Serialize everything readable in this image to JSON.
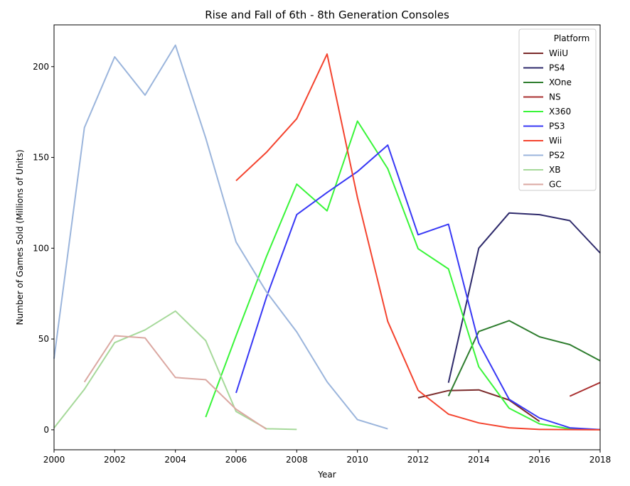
{
  "chart_data": {
    "type": "line",
    "title": "Rise and Fall of 6th - 8th Generation Consoles",
    "xlabel": "Year",
    "ylabel": "Number of Games Sold (Millions of Units)",
    "xlim": [
      2000,
      2018
    ],
    "ylim": [
      -11,
      223
    ],
    "xticks": [
      2000,
      2002,
      2004,
      2006,
      2008,
      2010,
      2012,
      2014,
      2016,
      2018
    ],
    "yticks": [
      0,
      50,
      100,
      150,
      200
    ],
    "grid": false,
    "legend": {
      "title": "Platform",
      "placement": "top-right"
    },
    "series": [
      {
        "name": "WiiU",
        "color": "#7b2b2b",
        "x": [
          2012,
          2013,
          2014,
          2015,
          2016
        ],
        "y": [
          17.6,
          21.6,
          22.0,
          16.4,
          4.6
        ]
      },
      {
        "name": "PS4",
        "color": "#2e2a6b",
        "x": [
          2013,
          2014,
          2015,
          2016,
          2017,
          2018
        ],
        "y": [
          25.9,
          100.0,
          119.4,
          118.5,
          115.2,
          97.4
        ]
      },
      {
        "name": "XOne",
        "color": "#2e7d2e",
        "x": [
          2013,
          2014,
          2015,
          2016,
          2017,
          2018
        ],
        "y": [
          18.6,
          54.1,
          60.1,
          51.2,
          46.9,
          38.0
        ]
      },
      {
        "name": "NS",
        "color": "#a82d2d",
        "x": [
          2017,
          2018
        ],
        "y": [
          18.5,
          26.0
        ]
      },
      {
        "name": "X360",
        "color": "#39f539",
        "x": [
          2005,
          2006,
          2007,
          2008,
          2009,
          2010,
          2011,
          2012,
          2013,
          2014,
          2015,
          2016,
          2017,
          2018
        ],
        "y": [
          7.0,
          51.8,
          95.4,
          135.3,
          120.6,
          170.0,
          143.8,
          99.7,
          88.6,
          34.7,
          11.9,
          3.3,
          0.5,
          0.1
        ]
      },
      {
        "name": "PS3",
        "color": "#3838f5",
        "x": [
          2006,
          2007,
          2008,
          2009,
          2010,
          2011,
          2012,
          2013,
          2014,
          2015,
          2016,
          2017,
          2018
        ],
        "y": [
          20.3,
          73.0,
          118.5,
          130.7,
          142.2,
          156.8,
          107.4,
          113.2,
          47.8,
          16.8,
          6.5,
          1.1,
          0.1
        ]
      },
      {
        "name": "Wii",
        "color": "#f4432e",
        "x": [
          2006,
          2007,
          2008,
          2009,
          2010,
          2011,
          2012,
          2013,
          2014,
          2015,
          2016,
          2017,
          2018
        ],
        "y": [
          137.2,
          152.8,
          171.3,
          206.9,
          127.9,
          59.7,
          21.7,
          8.6,
          3.8,
          1.1,
          0.2,
          0.1,
          0.0
        ]
      },
      {
        "name": "PS2",
        "color": "#9bb5dc",
        "x": [
          2000,
          2001,
          2002,
          2003,
          2004,
          2005,
          2006,
          2007,
          2008,
          2009,
          2010,
          2011
        ],
        "y": [
          39.2,
          166.4,
          205.4,
          184.3,
          211.8,
          160.7,
          103.4,
          76.0,
          53.9,
          26.4,
          5.6,
          0.5
        ]
      },
      {
        "name": "XB",
        "color": "#a6d99a",
        "x": [
          2000,
          2001,
          2002,
          2003,
          2004,
          2005,
          2006,
          2007,
          2008
        ],
        "y": [
          1.0,
          22.3,
          48.0,
          55.0,
          65.4,
          49.1,
          10.1,
          0.6,
          0.2
        ]
      },
      {
        "name": "GC",
        "color": "#dba8a2",
        "x": [
          2001,
          2002,
          2003,
          2004,
          2005,
          2006,
          2007
        ],
        "y": [
          26.3,
          51.8,
          50.6,
          28.8,
          27.6,
          11.3,
          0.3
        ]
      }
    ]
  }
}
